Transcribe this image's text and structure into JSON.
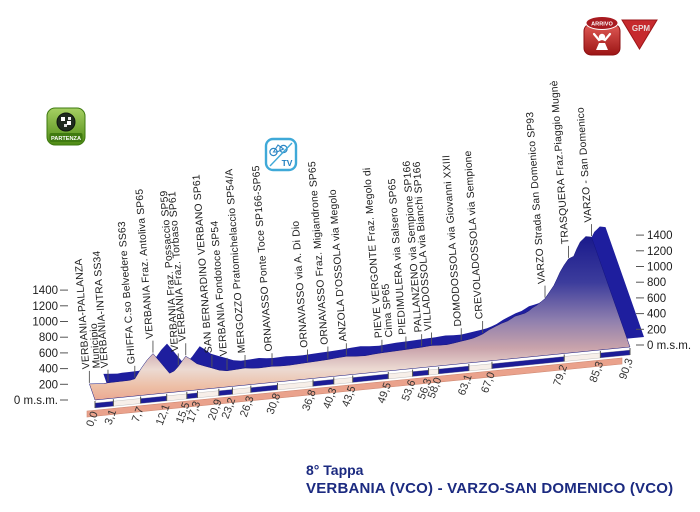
{
  "page": {
    "background": "#ffffff"
  },
  "title": {
    "line1": "8° Tappa",
    "line2": "VERBANIA (VCO) - VARZO-SAN DOMENICO (VCO)",
    "color": "#1b2a80"
  },
  "icons": {
    "start_label": "PARTENZA",
    "tv_label": "TV",
    "finish_label": "ARRIVO",
    "kom_label": "GPM"
  },
  "axis": {
    "zero_label": "0 m.s.m.",
    "unit": "m.s.m.",
    "ticks": [
      0,
      200,
      400,
      600,
      800,
      1000,
      1200,
      1400
    ]
  },
  "colors": {
    "top_surface": "#1e1e9e",
    "side_dark": "#15157e",
    "bar_navy": "#1c1c96",
    "bar_light": "#f7efe9",
    "salmon": "#eaa28c",
    "text": "#1c1c1c",
    "tick_line": "#555555",
    "title_navy": "#1b2a80",
    "icon_red": "#c62a2e",
    "icon_green": "#6faf2a",
    "icon_blue": "#3fa9d8"
  },
  "chart_data": {
    "type": "area",
    "title": "8° Tappa",
    "subtitle": "VERBANIA (VCO) - VARZO-SAN DOMENICO (VCO)",
    "x_unit": "km",
    "y_unit": "m.s.m.",
    "xlim": [
      0,
      90.3
    ],
    "ylim": [
      0,
      1400
    ],
    "y_ticks": [
      0,
      200,
      400,
      600,
      800,
      1000,
      1200,
      1400
    ],
    "grid": false,
    "profile": [
      [
        0,
        205
      ],
      [
        2.3,
        192
      ],
      [
        3.1,
        196
      ],
      [
        5,
        198
      ],
      [
        6.8,
        200
      ],
      [
        7.7,
        212
      ],
      [
        9.3,
        330
      ],
      [
        10.8,
        430
      ],
      [
        12.1,
        500
      ],
      [
        12.8,
        390
      ],
      [
        13.7,
        238
      ],
      [
        14.6,
        262
      ],
      [
        15.5,
        312
      ],
      [
        16.4,
        370
      ],
      [
        17.3,
        428
      ],
      [
        18,
        380
      ],
      [
        18.7,
        322
      ],
      [
        19.8,
        285
      ],
      [
        20.9,
        252
      ],
      [
        22,
        215
      ],
      [
        23.2,
        198
      ],
      [
        24.8,
        205
      ],
      [
        26.3,
        211
      ],
      [
        27.5,
        200
      ],
      [
        28.6,
        194
      ],
      [
        30.8,
        199
      ],
      [
        32.2,
        193
      ],
      [
        33.6,
        191
      ],
      [
        35.2,
        197
      ],
      [
        36.8,
        203
      ],
      [
        38.5,
        208
      ],
      [
        40.3,
        214
      ],
      [
        41.9,
        224
      ],
      [
        43.5,
        232
      ],
      [
        45,
        222
      ],
      [
        46.6,
        216
      ],
      [
        48,
        224
      ],
      [
        49.5,
        231
      ],
      [
        51.5,
        237
      ],
      [
        53.6,
        242
      ],
      [
        55,
        247
      ],
      [
        56.3,
        252
      ],
      [
        57.1,
        256
      ],
      [
        58,
        260
      ],
      [
        59.3,
        255
      ],
      [
        60.6,
        252
      ],
      [
        61.9,
        264
      ],
      [
        63.1,
        277
      ],
      [
        64.2,
        288
      ],
      [
        65.2,
        300
      ],
      [
        66.1,
        318
      ],
      [
        67,
        340
      ],
      [
        68.3,
        385
      ],
      [
        69.6,
        420
      ],
      [
        70.7,
        448
      ],
      [
        71.8,
        470
      ],
      [
        72.6,
        495
      ],
      [
        73.3,
        520
      ],
      [
        74.2,
        532
      ],
      [
        75.1,
        545
      ],
      [
        75.9,
        570
      ],
      [
        76.6,
        600
      ],
      [
        77.5,
        630
      ],
      [
        78.4,
        665
      ],
      [
        79.2,
        700
      ],
      [
        80.3,
        775
      ],
      [
        81.4,
        850
      ],
      [
        82.3,
        930
      ],
      [
        83.2,
        1010
      ],
      [
        84.2,
        1085
      ],
      [
        85.3,
        1160
      ],
      [
        85.8,
        1172
      ],
      [
        86.3,
        1185
      ],
      [
        87.2,
        1270
      ],
      [
        88.2,
        1355
      ],
      [
        88.8,
        1385
      ],
      [
        89.4,
        1415
      ],
      [
        90.3,
        1400
      ]
    ],
    "waypoints": [
      {
        "km": 0.0,
        "km_label": "0,0",
        "elev": 205,
        "name": "VERBANIA-PALLANZA",
        "name2": "Municipio"
      },
      {
        "km": 3.1,
        "km_label": "3,1",
        "elev": 196,
        "name": "VERBANIA-INTRA SS34"
      },
      {
        "km": 7.7,
        "km_label": "7,7",
        "elev": 212,
        "name": "GHIFFA C.so Belvedere SS63"
      },
      {
        "km": 12.1,
        "km_label": "12,1",
        "elev": 500,
        "name": "VERBANIA Fraz. Antoliva SP65"
      },
      {
        "km": 15.5,
        "km_label": "15,5",
        "elev": 312,
        "name": "VERBANIA Fraz. Possaccio SP59"
      },
      {
        "km": 17.3,
        "km_label": "17,3",
        "elev": 428,
        "name": "VERBANIA Fraz. Torbaso SP61"
      },
      {
        "km": 20.9,
        "km_label": "20,9",
        "elev": 252,
        "name": "SAN BERNARDINO VERBANO SP61"
      },
      {
        "km": 23.2,
        "km_label": "23,2",
        "elev": 198,
        "name": "VERBANIA Fondotoce SP54"
      },
      {
        "km": 26.3,
        "km_label": "26,3",
        "elev": 211,
        "name": "MERGOZZO Pratomichelaccio SP54/A"
      },
      {
        "km": 30.8,
        "km_label": "30,8",
        "elev": 199,
        "name": "ORNAVASSO Ponte Toce SP166-SP65"
      },
      {
        "km": 36.8,
        "km_label": "36,8",
        "elev": 203,
        "name": "ORNAVASSO via A. Di Dio"
      },
      {
        "km": 40.3,
        "km_label": "40,3",
        "elev": 214,
        "name": "ORNAVASSO Fraz. Migiandrone SP65"
      },
      {
        "km": 43.5,
        "km_label": "43,5",
        "elev": 232,
        "name": "ANZOLA D'OSSOLA via Megolo"
      },
      {
        "km": 49.5,
        "km_label": "49,5",
        "elev": 231,
        "name": "PIEVE VERGONTE Fraz. Megolo di",
        "name2": "Cima SP65"
      },
      {
        "km": 53.6,
        "km_label": "53,6",
        "elev": 242,
        "name": "PIEDIMULERA via Salsero SP65"
      },
      {
        "km": 56.3,
        "km_label": "56,3",
        "elev": 252,
        "name": "PALLANZENO via Sempione SP166"
      },
      {
        "km": 58.0,
        "km_label": "58,0",
        "elev": 260,
        "name": "VILLADOSSOLA via Bianchi SP166"
      },
      {
        "km": 63.1,
        "km_label": "63,1",
        "elev": 277,
        "name": "DOMODOSSOLA via Giovanni XXIII"
      },
      {
        "km": 67.0,
        "km_label": "67,0",
        "elev": 340,
        "name": "CREVOLADOSSOLA via Sempione"
      },
      {
        "km": 79.2,
        "km_label": "79,2",
        "elev": 700,
        "name": "VARZO Strada San Domenico SP93"
      },
      {
        "km": 85.3,
        "km_label": "85,3",
        "elev": 1160,
        "name": "TRASQUERA Fraz.Piaggio Mugnè"
      },
      {
        "km": 90.3,
        "km_label": "90,3",
        "elev": 1400,
        "name": "VARZO - San Domenico"
      }
    ]
  }
}
